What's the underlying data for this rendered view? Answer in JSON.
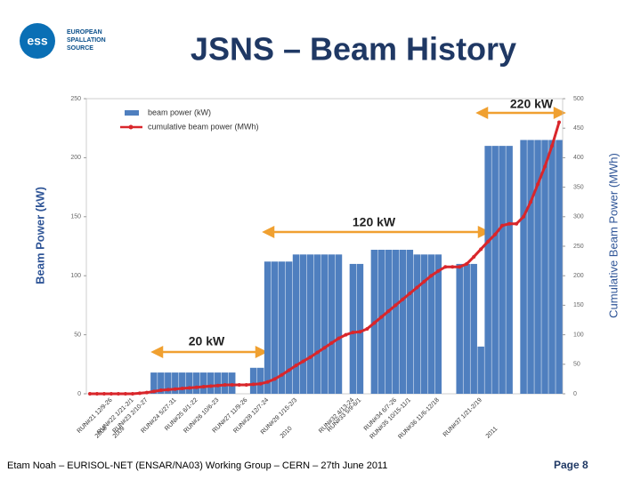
{
  "logo": {
    "mark": "ess",
    "lines": [
      "EUROPEAN",
      "SPALLATION",
      "SOURCE"
    ]
  },
  "footer": {
    "text": "Etam Noah – EURISOL-NET (ENSAR/NA03) Working Group – CERN – 27th June 2011",
    "page": "Page 8"
  },
  "chart_data": {
    "type": "bar_line",
    "title": "JSNS – Beam History",
    "y_label": "Beam Power (kW)",
    "y2_label": "Cumulative Beam Power (MWh)",
    "annotations": [
      "20 kW",
      "120 kW",
      "220 kW"
    ],
    "years": [
      "2008",
      "2009",
      "2010",
      "2011"
    ],
    "categories": [
      null,
      null,
      null,
      "RUN#21 12/9-26",
      null,
      null,
      "RUN#22 1/21-2/1",
      null,
      "RUN#23 2/10-27",
      null,
      null,
      null,
      "RUN#24 5/27-31",
      null,
      null,
      "RUN#25 6/1-22",
      null,
      null,
      "RUN#26 10/6-23",
      null,
      null,
      null,
      "RUN#27 11/9-26",
      null,
      null,
      "RUN#28 12/7-24",
      null,
      null,
      null,
      "RUN#29 1/15-2/3",
      null,
      null,
      null,
      null,
      null,
      null,
      null,
      "RUN#32 4/13-24",
      "RUN#33 5/9-6/1",
      null,
      null,
      null,
      null,
      "RUN#34 6/7-26",
      null,
      "RUN#35 10/15-11/1",
      null,
      null,
      null,
      "RUN#36 11/6-12/18",
      null,
      null,
      null,
      null,
      null,
      "RUN#37 1/21-2/19",
      null,
      null,
      null,
      null,
      null,
      null,
      null,
      null,
      null,
      null,
      null
    ],
    "series": [
      {
        "name": "beam power (kW)",
        "color": "#4f7fbf",
        "axis": "y",
        "values": [
          0,
          0,
          0,
          0,
          0,
          0,
          0,
          0,
          0,
          18,
          18,
          18,
          18,
          18,
          18,
          18,
          18,
          18,
          18,
          18,
          18,
          0,
          0,
          22,
          22,
          112,
          112,
          112,
          112,
          118,
          118,
          118,
          118,
          118,
          118,
          118,
          0,
          110,
          110,
          0,
          122,
          122,
          122,
          122,
          122,
          122,
          118,
          118,
          118,
          118,
          0,
          0,
          110,
          110,
          110,
          40,
          210,
          210,
          210,
          210,
          0,
          215,
          215,
          215,
          215,
          215,
          215
        ]
      },
      {
        "name": "cumulative beam power (MWh)",
        "color": "#d9262b",
        "axis": "y2",
        "values": [
          0,
          0,
          0,
          0,
          0,
          0,
          0,
          1,
          2,
          4,
          6,
          7,
          8,
          9,
          10,
          11,
          12,
          13,
          14,
          15,
          15,
          15,
          15,
          16,
          17,
          20,
          25,
          32,
          40,
          48,
          55,
          62,
          70,
          78,
          86,
          94,
          100,
          104,
          105,
          110,
          120,
          130,
          140,
          150,
          160,
          170,
          180,
          190,
          200,
          208,
          215,
          215,
          215,
          220,
          232,
          245,
          258,
          270,
          285,
          288,
          288,
          300,
          325,
          355,
          385,
          420,
          460
        ]
      }
    ],
    "ylim": [
      0,
      250
    ],
    "yticks": [
      0,
      50,
      100,
      150,
      200,
      250
    ],
    "y2lim": [
      0,
      500
    ],
    "y2ticks": [
      0,
      50,
      100,
      150,
      200,
      250,
      300,
      350,
      400,
      450,
      500
    ],
    "legend": "top-left"
  }
}
